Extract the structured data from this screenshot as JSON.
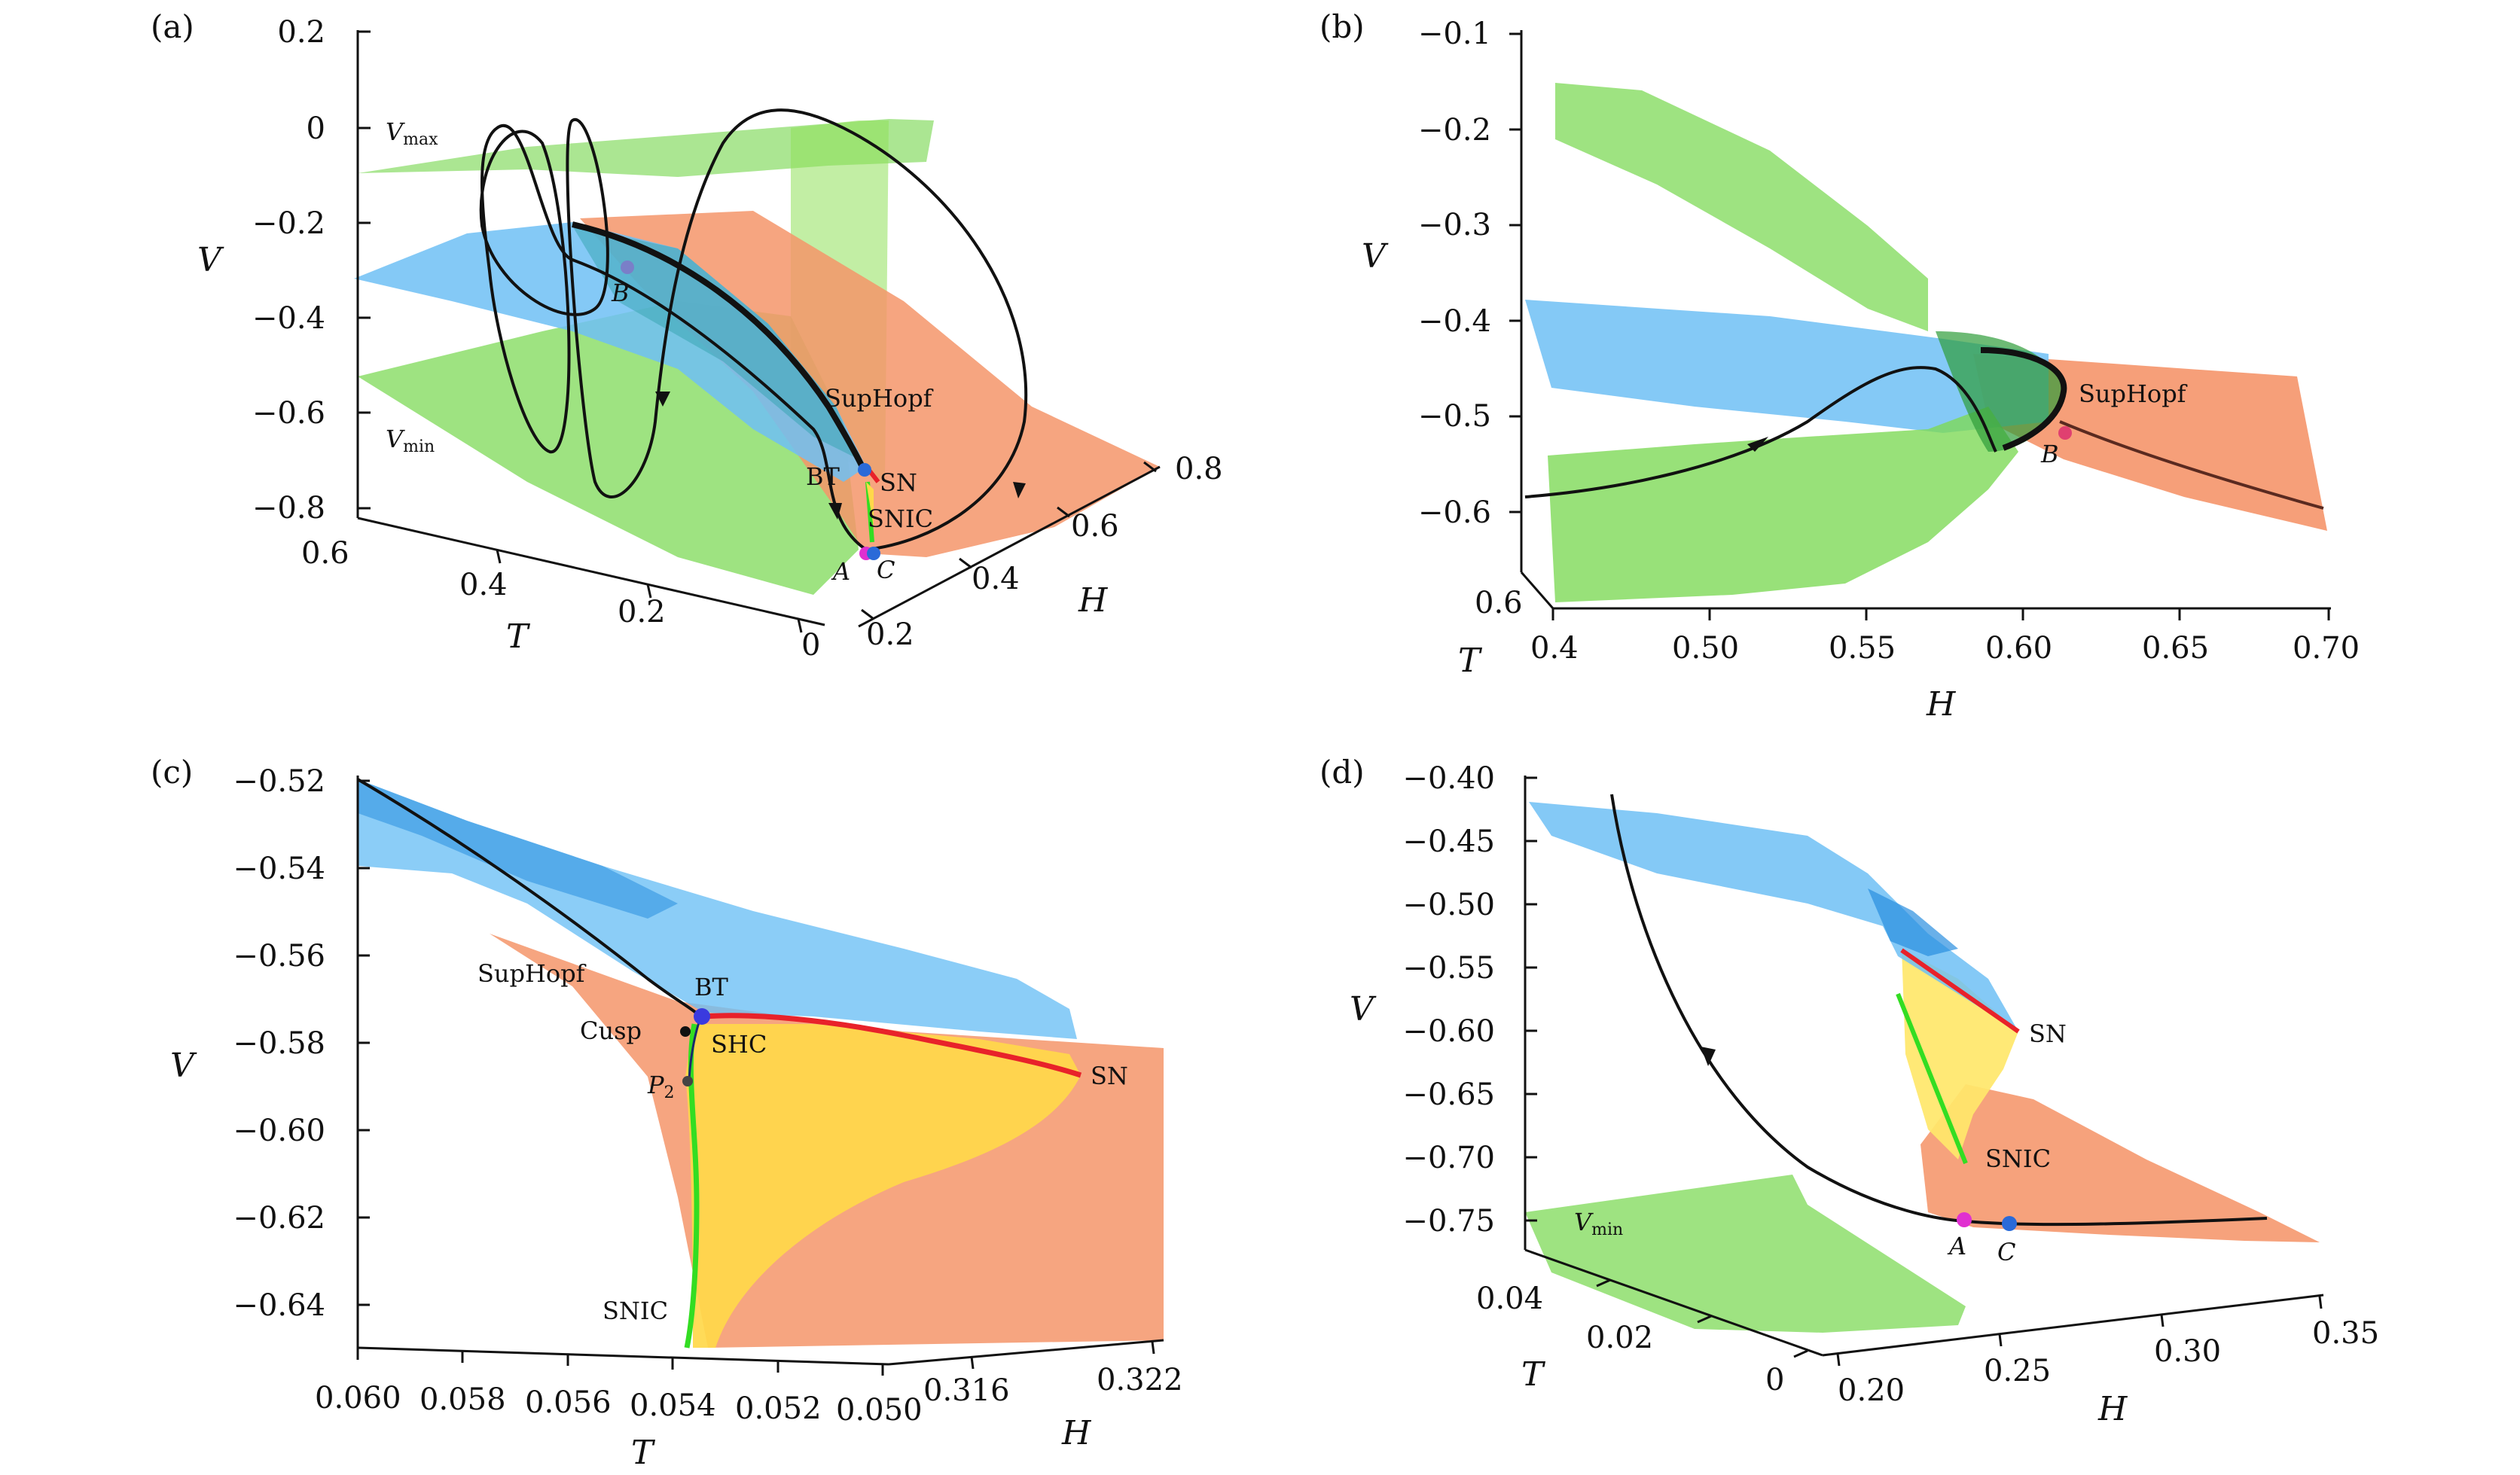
{
  "panels": {
    "a": {
      "label": "(a)",
      "v_ticks": [
        "0.2",
        "0",
        "−0.2",
        "−0.4",
        "−0.6",
        "−0.8"
      ],
      "t_ticks": [
        "0.6",
        "0.4",
        "0.2",
        "0"
      ],
      "h_ticks": [
        "0.2",
        "0.4",
        "0.6",
        "0.8"
      ],
      "axis_v": "V",
      "axis_t": "T",
      "axis_h": "H",
      "vmax": "V",
      "vmax_sub": "max",
      "vmin": "V",
      "vmin_sub": "min",
      "labels": {
        "suphopf": "SupHopf",
        "bt": "BT",
        "sn": "SN",
        "snic": "SNIC",
        "a": "A",
        "b": "B",
        "c": "C"
      }
    },
    "b": {
      "label": "(b)",
      "v_ticks": [
        "−0.1",
        "−0.2",
        "−0.3",
        "−0.4",
        "−0.5",
        "−0.6"
      ],
      "h_ticks": [
        "0.4",
        "0.50",
        "0.55",
        "0.60",
        "0.65",
        "0.70"
      ],
      "t_tick": "0.6",
      "axis_v": "V",
      "axis_t": "T",
      "axis_h": "H",
      "labels": {
        "suphopf": "SupHopf",
        "b": "B"
      }
    },
    "c": {
      "label": "(c)",
      "v_ticks": [
        "−0.52",
        "−0.54",
        "−0.56",
        "−0.58",
        "−0.60",
        "−0.62",
        "−0.64"
      ],
      "t_ticks": [
        "0.060",
        "0.058",
        "0.056",
        "0.054",
        "0.052",
        "0.050"
      ],
      "h_ticks": [
        "0.316",
        "0.322"
      ],
      "axis_v": "V",
      "axis_t": "T",
      "axis_h": "H",
      "labels": {
        "suphopf": "SupHopf",
        "bt": "BT",
        "cusp": "Cusp",
        "shc": "SHC",
        "p2": "P",
        "p2_sub": "2",
        "sn": "SN",
        "snic": "SNIC"
      }
    },
    "d": {
      "label": "(d)",
      "v_ticks": [
        "−0.40",
        "−0.45",
        "−0.50",
        "−0.55",
        "−0.60",
        "−0.65",
        "−0.70",
        "−0.75"
      ],
      "t_ticks": [
        "0.04",
        "0.02",
        "0"
      ],
      "h_ticks": [
        "0.20",
        "0.25",
        "0.30",
        "0.35"
      ],
      "axis_v": "V",
      "axis_t": "T",
      "axis_h": "H",
      "vmin": "V",
      "vmin_sub": "min",
      "labels": {
        "sn": "SN",
        "snic": "SNIC",
        "a": "A",
        "c": "C"
      }
    }
  },
  "colors": {
    "green": "#7ed957",
    "blue": "#6ec0f5",
    "orange": "#f5956a",
    "yellow": "#ffd84a",
    "red": "#e8222a",
    "lime": "#33dd22",
    "magenta": "#e030d0",
    "blue_dot": "#2a6ad8",
    "black": "#111111"
  }
}
